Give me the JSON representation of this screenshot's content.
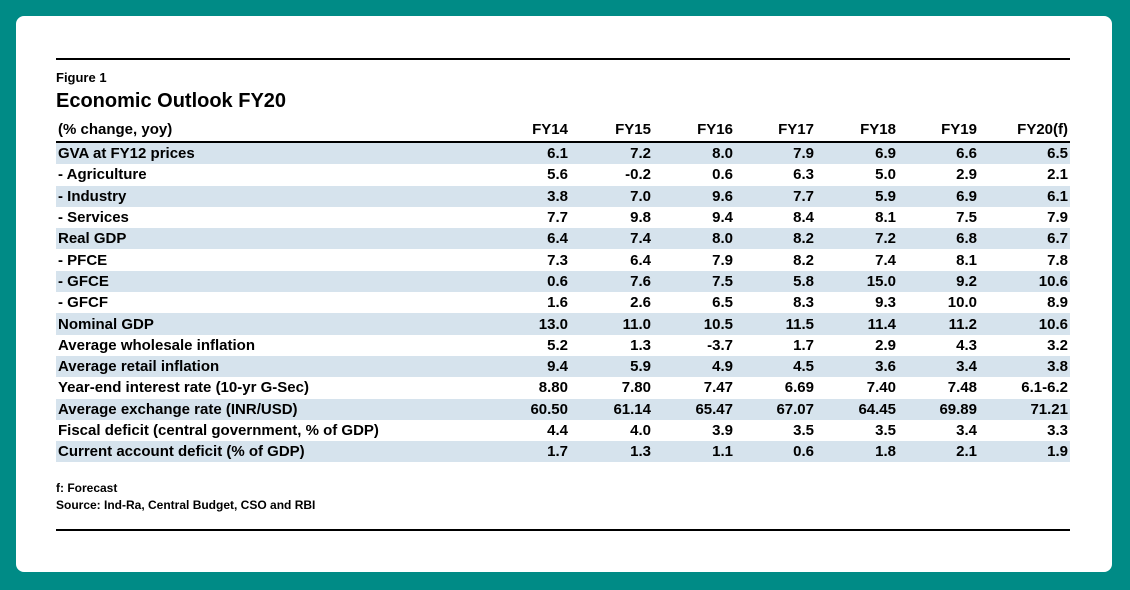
{
  "figure_label": "Figure 1",
  "title": "Economic Outlook FY20",
  "table": {
    "header": [
      "(% change, yoy)",
      "FY14",
      "FY15",
      "FY16",
      "FY17",
      "FY18",
      "FY19",
      "FY20(f)"
    ],
    "rows": [
      [
        "GVA at FY12 prices",
        "6.1",
        "7.2",
        "8.0",
        "7.9",
        "6.9",
        "6.6",
        "6.5"
      ],
      [
        " - Agriculture",
        "5.6",
        "-0.2",
        "0.6",
        "6.3",
        "5.0",
        "2.9",
        "2.1"
      ],
      [
        " - Industry",
        "3.8",
        "7.0",
        "9.6",
        "7.7",
        "5.9",
        "6.9",
        "6.1"
      ],
      [
        " - Services",
        "7.7",
        "9.8",
        "9.4",
        "8.4",
        "8.1",
        "7.5",
        "7.9"
      ],
      [
        "Real GDP",
        "6.4",
        "7.4",
        "8.0",
        "8.2",
        "7.2",
        "6.8",
        "6.7"
      ],
      [
        " - PFCE",
        "7.3",
        "6.4",
        "7.9",
        "8.2",
        "7.4",
        "8.1",
        "7.8"
      ],
      [
        " - GFCE",
        "0.6",
        "7.6",
        "7.5",
        "5.8",
        "15.0",
        "9.2",
        "10.6"
      ],
      [
        " - GFCF",
        "1.6",
        "2.6",
        "6.5",
        "8.3",
        "9.3",
        "10.0",
        "8.9"
      ],
      [
        "Nominal GDP",
        "13.0",
        "11.0",
        "10.5",
        "11.5",
        "11.4",
        "11.2",
        "10.6"
      ],
      [
        "Average wholesale inflation",
        "5.2",
        "1.3",
        "-3.7",
        "1.7",
        "2.9",
        "4.3",
        "3.2"
      ],
      [
        "Average retail inflation",
        "9.4",
        "5.9",
        "4.9",
        "4.5",
        "3.6",
        "3.4",
        "3.8"
      ],
      [
        "Year-end interest rate (10-yr G-Sec)",
        "8.80",
        "7.80",
        "7.47",
        "6.69",
        "7.40",
        "7.48",
        "6.1-6.2"
      ],
      [
        "Average exchange rate (INR/USD)",
        "60.50",
        "61.14",
        "65.47",
        "67.07",
        "64.45",
        "69.89",
        "71.21"
      ],
      [
        "Fiscal deficit (central government, % of GDP)",
        "4.4",
        "4.0",
        "3.9",
        "3.5",
        "3.5",
        "3.4",
        "3.3"
      ],
      [
        "Current account deficit (% of GDP)",
        "1.7",
        "1.3",
        "1.1",
        "0.6",
        "1.8",
        "2.1",
        "1.9"
      ]
    ]
  },
  "notes": {
    "forecast": "f: Forecast",
    "source": "Source: Ind-Ra, Central Budget, CSO and RBI"
  },
  "colors": {
    "frame": "#008b86",
    "row_stripe": "#d6e3ed"
  }
}
